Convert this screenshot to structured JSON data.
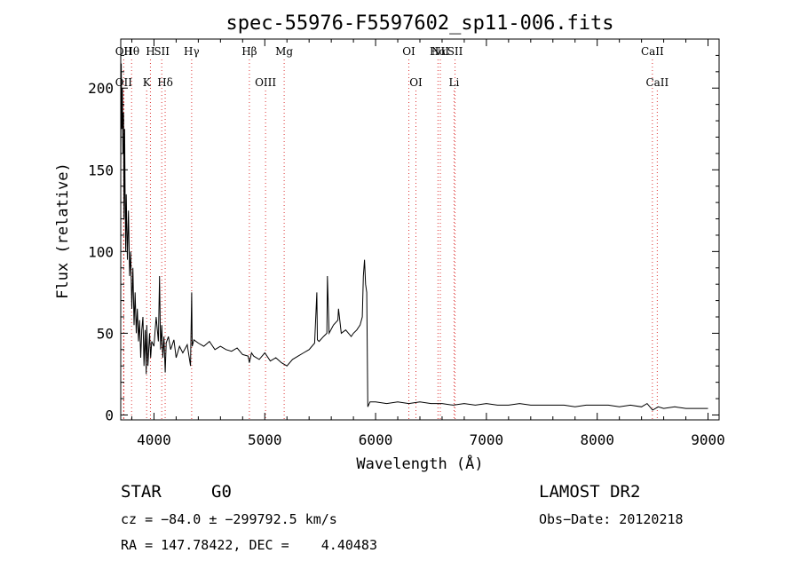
{
  "chart_data": {
    "type": "line",
    "title": "spec-55976-F5597602_sp11-006.fits",
    "xlabel": "Wavelength (Å)",
    "ylabel": "Flux (relative)",
    "xlim": [
      3700,
      9100
    ],
    "ylim": [
      -3,
      230
    ],
    "xticks": [
      4000,
      5000,
      6000,
      7000,
      8000,
      9000
    ],
    "yticks": [
      0,
      50,
      100,
      150,
      200
    ],
    "grid": false,
    "series": [
      {
        "x": [
          3700,
          3705,
          3710,
          3715,
          3720,
          3725,
          3730,
          3735,
          3740,
          3745,
          3750,
          3760,
          3770,
          3780,
          3790,
          3800,
          3810,
          3820,
          3830,
          3840,
          3850,
          3860,
          3870,
          3880,
          3890,
          3900,
          3910,
          3920,
          3930,
          3935,
          3945,
          3960,
          3970,
          3980,
          4000,
          4020,
          4040,
          4050,
          4060,
          4070,
          4080,
          4090,
          4101,
          4110,
          4130,
          4150,
          4180,
          4200,
          4230,
          4260,
          4300,
          4330,
          4340,
          4345,
          4360,
          4400,
          4450,
          4500,
          4550,
          4600,
          4650,
          4700,
          4750,
          4800,
          4850,
          4861,
          4880,
          4900,
          4950,
          5000,
          5050,
          5100,
          5150,
          5200,
          5250,
          5300,
          5350,
          5400,
          5450,
          5470,
          5475,
          5490,
          5530,
          5560,
          5565,
          5580,
          5620,
          5660,
          5665,
          5690,
          5730,
          5780,
          5800,
          5830,
          5860,
          5880,
          5890,
          5900,
          5910,
          5920,
          5925,
          5930,
          5950,
          6000,
          6100,
          6200,
          6300,
          6400,
          6500,
          6600,
          6700,
          6800,
          6900,
          7000,
          7100,
          7200,
          7300,
          7400,
          7500,
          7600,
          7700,
          7800,
          7900,
          8000,
          8100,
          8200,
          8300,
          8400,
          8450,
          8500,
          8550,
          8600,
          8700,
          8800,
          8900,
          9000
        ],
        "y": [
          150,
          215,
          175,
          200,
          160,
          185,
          120,
          175,
          130,
          100,
          135,
          95,
          125,
          85,
          100,
          65,
          90,
          55,
          75,
          50,
          65,
          45,
          58,
          35,
          52,
          60,
          30,
          52,
          25,
          55,
          30,
          50,
          35,
          45,
          42,
          60,
          45,
          85,
          40,
          55,
          35,
          48,
          26,
          44,
          48,
          40,
          46,
          35,
          42,
          38,
          43,
          30,
          75,
          42,
          46,
          44,
          42,
          45,
          40,
          42,
          40,
          39,
          41,
          37,
          36,
          32,
          38,
          36,
          34,
          38,
          33,
          35,
          32,
          30,
          34,
          36,
          38,
          40,
          44,
          75,
          46,
          45,
          48,
          50,
          85,
          50,
          55,
          58,
          65,
          50,
          52,
          48,
          50,
          52,
          55,
          60,
          85,
          95,
          80,
          75,
          40,
          5,
          8,
          8,
          7,
          8,
          7,
          8,
          7,
          7,
          6,
          7,
          6,
          7,
          6,
          6,
          7,
          6,
          6,
          6,
          6,
          5,
          6,
          6,
          6,
          5,
          6,
          5,
          7,
          3,
          5,
          4,
          5,
          4,
          4,
          4
        ]
      }
    ],
    "lines_top": [
      {
        "label": "Hθ",
        "x": 3798
      },
      {
        "label": "OII",
        "x": 3727
      },
      {
        "label": "SII",
        "x": 4070
      },
      {
        "label": "H",
        "x": 3968
      },
      {
        "label": "Hγ",
        "x": 4340
      },
      {
        "label": "Hβ",
        "x": 4861
      },
      {
        "label": "Mg",
        "x": 5175
      },
      {
        "label": "OI",
        "x": 6300
      },
      {
        "label": "Hα",
        "x": 6563
      },
      {
        "label": "NII",
        "x": 6584
      },
      {
        "label": "SII",
        "x": 6717
      },
      {
        "label": "CaII",
        "x": 8498
      }
    ],
    "lines_bottom": [
      {
        "label": "OII",
        "x": 3727
      },
      {
        "label": "K",
        "x": 3934
      },
      {
        "label": "Hδ",
        "x": 4101
      },
      {
        "label": "OIII",
        "x": 5007
      },
      {
        "label": "OI",
        "x": 6364
      },
      {
        "label": "Li",
        "x": 6708
      },
      {
        "label": "CaII",
        "x": 8542
      }
    ]
  },
  "footer": {
    "object_class": "STAR",
    "subclass": "G0",
    "survey": "LAMOST DR2",
    "cz": "cz = −84.0 ± −299792.5 km/s",
    "obs_date": "Obs−Date: 20120218",
    "coords": "RA = 147.78422, DEC =    4.40483"
  }
}
